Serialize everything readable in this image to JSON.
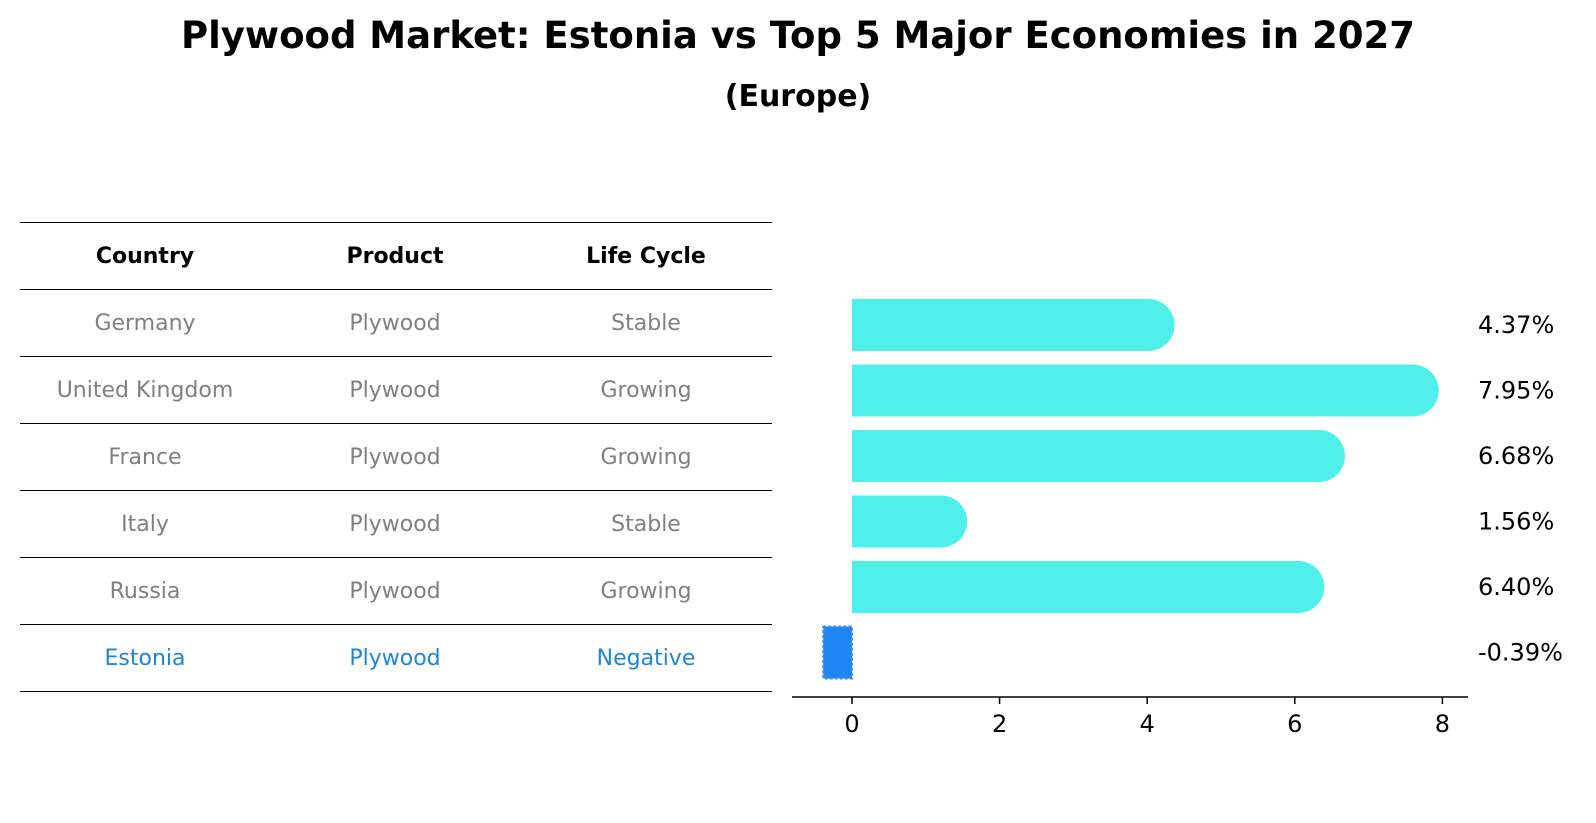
{
  "title": "Plywood Market: Estonia vs Top 5 Major Economies in 2027",
  "subtitle": "(Europe)",
  "table": {
    "headers": [
      "Country",
      "Product",
      "Life Cycle"
    ],
    "rows": [
      [
        "Germany",
        "Plywood",
        "Stable"
      ],
      [
        "United Kingdom",
        "Plywood",
        "Growing"
      ],
      [
        "France",
        "Plywood",
        "Growing"
      ],
      [
        "Italy",
        "Plywood",
        "Stable"
      ],
      [
        "Russia",
        "Plywood",
        "Growing"
      ],
      [
        "Estonia",
        "Plywood",
        "Negative"
      ]
    ],
    "highlight_row": 5
  },
  "colors": {
    "bar": "#4ff0ec",
    "highlight": "#1f86f2",
    "highlight_text": "#1f86d6",
    "muted_text": "#808080"
  },
  "chart_data": {
    "type": "bar",
    "orientation": "horizontal",
    "categories": [
      "Germany",
      "United Kingdom",
      "France",
      "Italy",
      "Russia",
      "Estonia"
    ],
    "values": [
      4.37,
      7.95,
      6.68,
      1.56,
      6.4,
      -0.39
    ],
    "value_labels": [
      "4.37%",
      "7.95%",
      "6.68%",
      "1.56%",
      "6.40%",
      "-0.39%"
    ],
    "xticks": [
      "0",
      "2",
      "4",
      "6",
      "8"
    ],
    "xlim": [
      -0.8,
      8.4
    ],
    "xlabel": "",
    "ylabel": "",
    "grid": false
  }
}
